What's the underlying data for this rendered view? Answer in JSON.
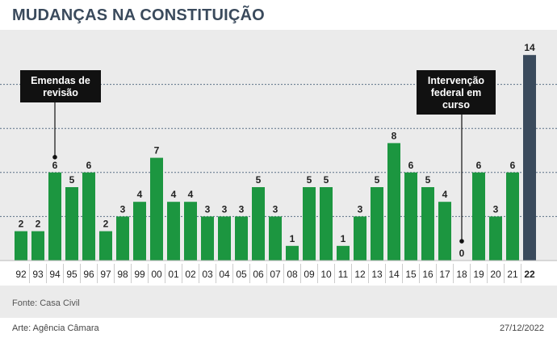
{
  "header": {
    "title": "MUDANÇAS NA CONSTITUIÇÃO"
  },
  "chart_data": {
    "type": "bar",
    "categories": [
      "92",
      "93",
      "94",
      "95",
      "96",
      "97",
      "98",
      "99",
      "00",
      "01",
      "02",
      "03",
      "04",
      "05",
      "06",
      "07",
      "08",
      "09",
      "10",
      "11",
      "12",
      "13",
      "14",
      "15",
      "16",
      "17",
      "18",
      "19",
      "20",
      "21",
      "22"
    ],
    "values": [
      2,
      2,
      6,
      5,
      6,
      2,
      3,
      4,
      7,
      4,
      4,
      3,
      3,
      3,
      5,
      3,
      1,
      5,
      5,
      1,
      3,
      5,
      8,
      6,
      5,
      4,
      0,
      6,
      3,
      6,
      14
    ],
    "title": "MUDANÇAS NA CONSTITUIÇÃO",
    "xlabel": "",
    "ylabel": "",
    "ylim": [
      0,
      14
    ],
    "grid": true,
    "colors": {
      "bar": "#1c9640",
      "highlight": "#3a4a5c",
      "annotation_bg": "#111111"
    },
    "annotations": [
      {
        "text_lines": [
          "Emendas de",
          "revisão"
        ],
        "category": "94"
      },
      {
        "text_lines": [
          "Intervenção",
          "federal em",
          "curso"
        ],
        "category": "18"
      }
    ]
  },
  "footer": {
    "source": "Fonte: Casa Civil",
    "credit": "Arte: Agência Câmara",
    "date": "27/12/2022"
  }
}
